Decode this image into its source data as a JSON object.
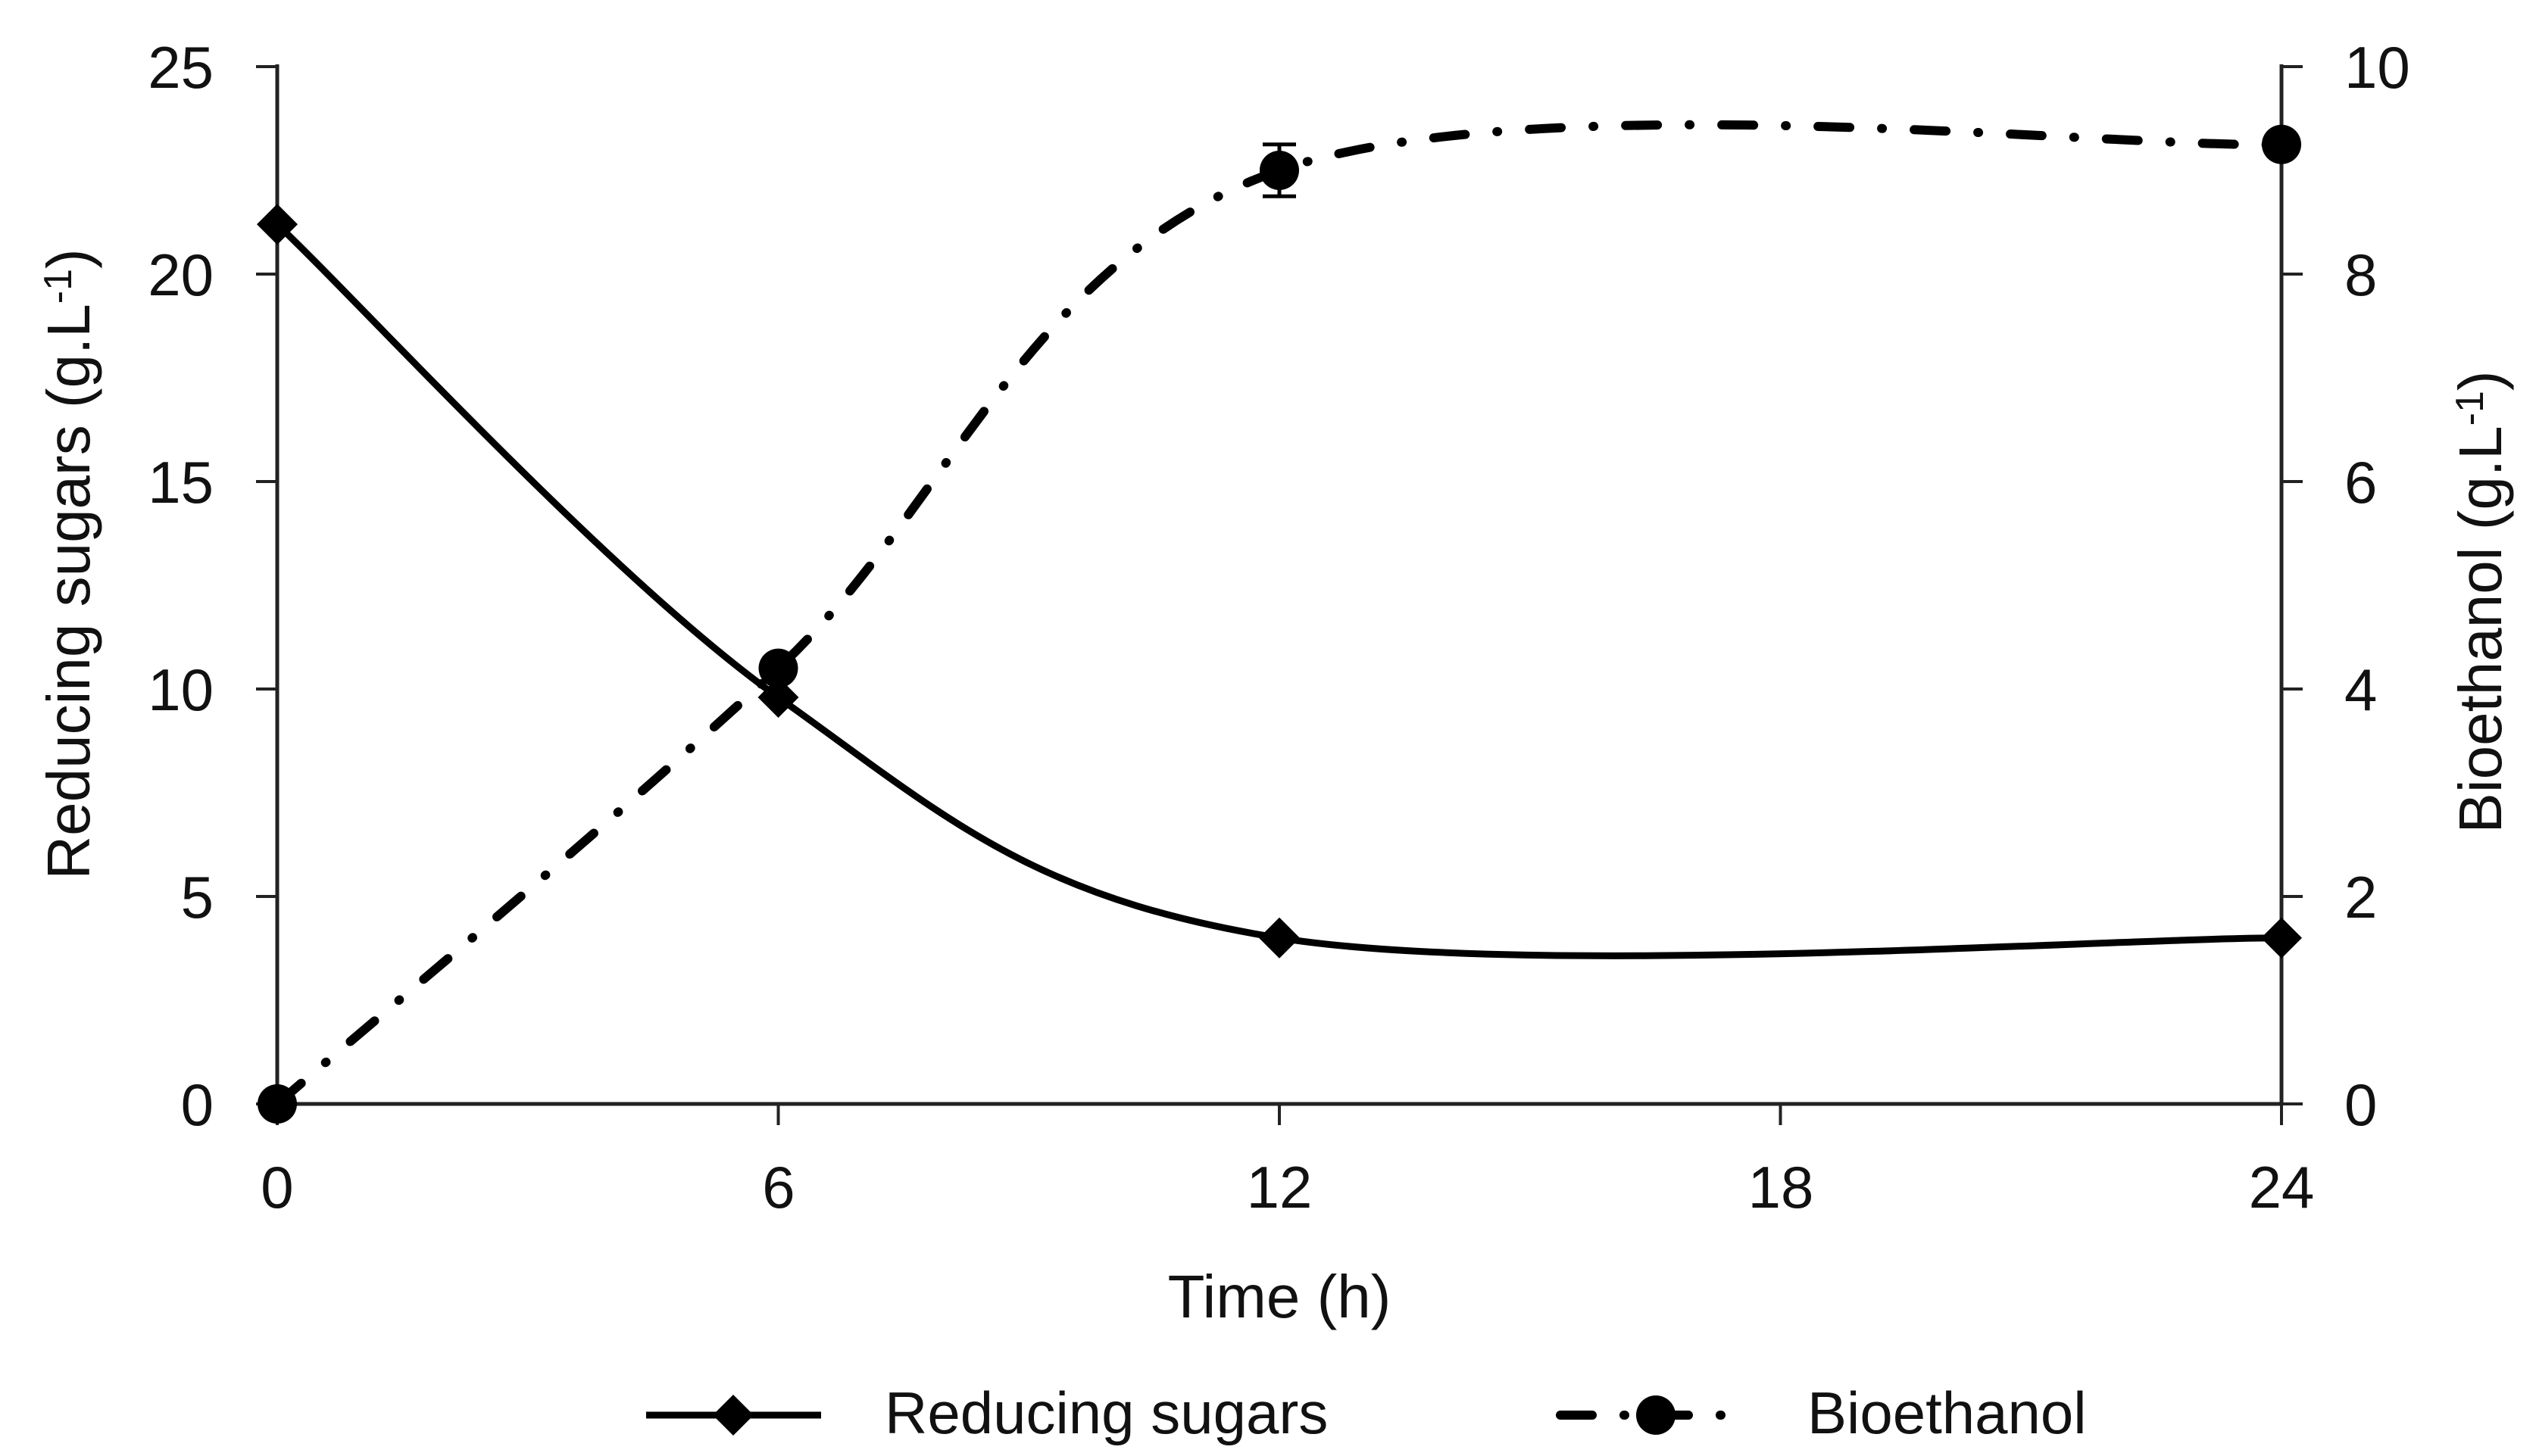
{
  "chart_data": {
    "type": "line",
    "x": [
      0,
      6,
      12,
      24
    ],
    "x_axis": {
      "label": "Time (h)",
      "ticks": [
        "0",
        "6",
        "12",
        "18",
        "24"
      ],
      "tick_values": [
        0,
        6,
        12,
        18,
        24
      ],
      "range": [
        0,
        24
      ]
    },
    "left_axis": {
      "label": "Reducing sugars (g.L-1)",
      "label_prefix": "Reducing sugars (g.L",
      "label_sup": "-1",
      "label_suffix": ")",
      "ticks": [
        "25",
        "20",
        "15",
        "10",
        "5",
        "0"
      ],
      "tick_values": [
        25,
        20,
        15,
        10,
        5,
        0
      ],
      "range": [
        0,
        25
      ]
    },
    "right_axis": {
      "label": "Bioethanol (g.L-1)",
      "label_prefix": "Bioethanol (g.L",
      "label_sup": "-1",
      "label_suffix": ")",
      "ticks": [
        "10",
        "8",
        "6",
        "4",
        "2",
        "0"
      ],
      "tick_values": [
        10,
        8,
        6,
        4,
        2,
        0
      ],
      "range": [
        0,
        10
      ]
    },
    "series": [
      {
        "name": "Reducing sugars",
        "axis": "left",
        "marker": "diamond",
        "line_style": "solid",
        "smoothing": "spline",
        "values": [
          21.2,
          9.8,
          4.0,
          4.0
        ],
        "errors": [
          null,
          null,
          null,
          null
        ]
      },
      {
        "name": "Bioethanol",
        "axis": "right",
        "marker": "circle",
        "line_style": "dash-dot",
        "smoothing": "spline",
        "values": [
          0,
          4.2,
          9.0,
          9.25
        ],
        "errors": [
          null,
          null,
          0.25,
          null
        ]
      }
    ],
    "legend": {
      "position": "bottom",
      "items": [
        "Reducing sugars",
        "Bioethanol"
      ]
    },
    "grid": "off",
    "colors": {
      "series": "#000000",
      "axis": "#222222",
      "background": "#ffffff"
    }
  }
}
